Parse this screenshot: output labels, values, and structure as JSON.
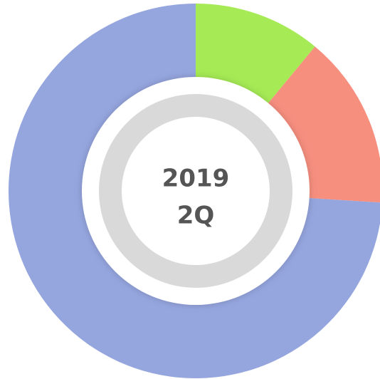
{
  "chart_data": {
    "type": "donut",
    "center_text": [
      "2019",
      "2Q"
    ],
    "values": [
      11,
      15,
      74
    ],
    "colors": [
      "#a6eb55",
      "#f78f7f",
      "#95a5de"
    ]
  }
}
